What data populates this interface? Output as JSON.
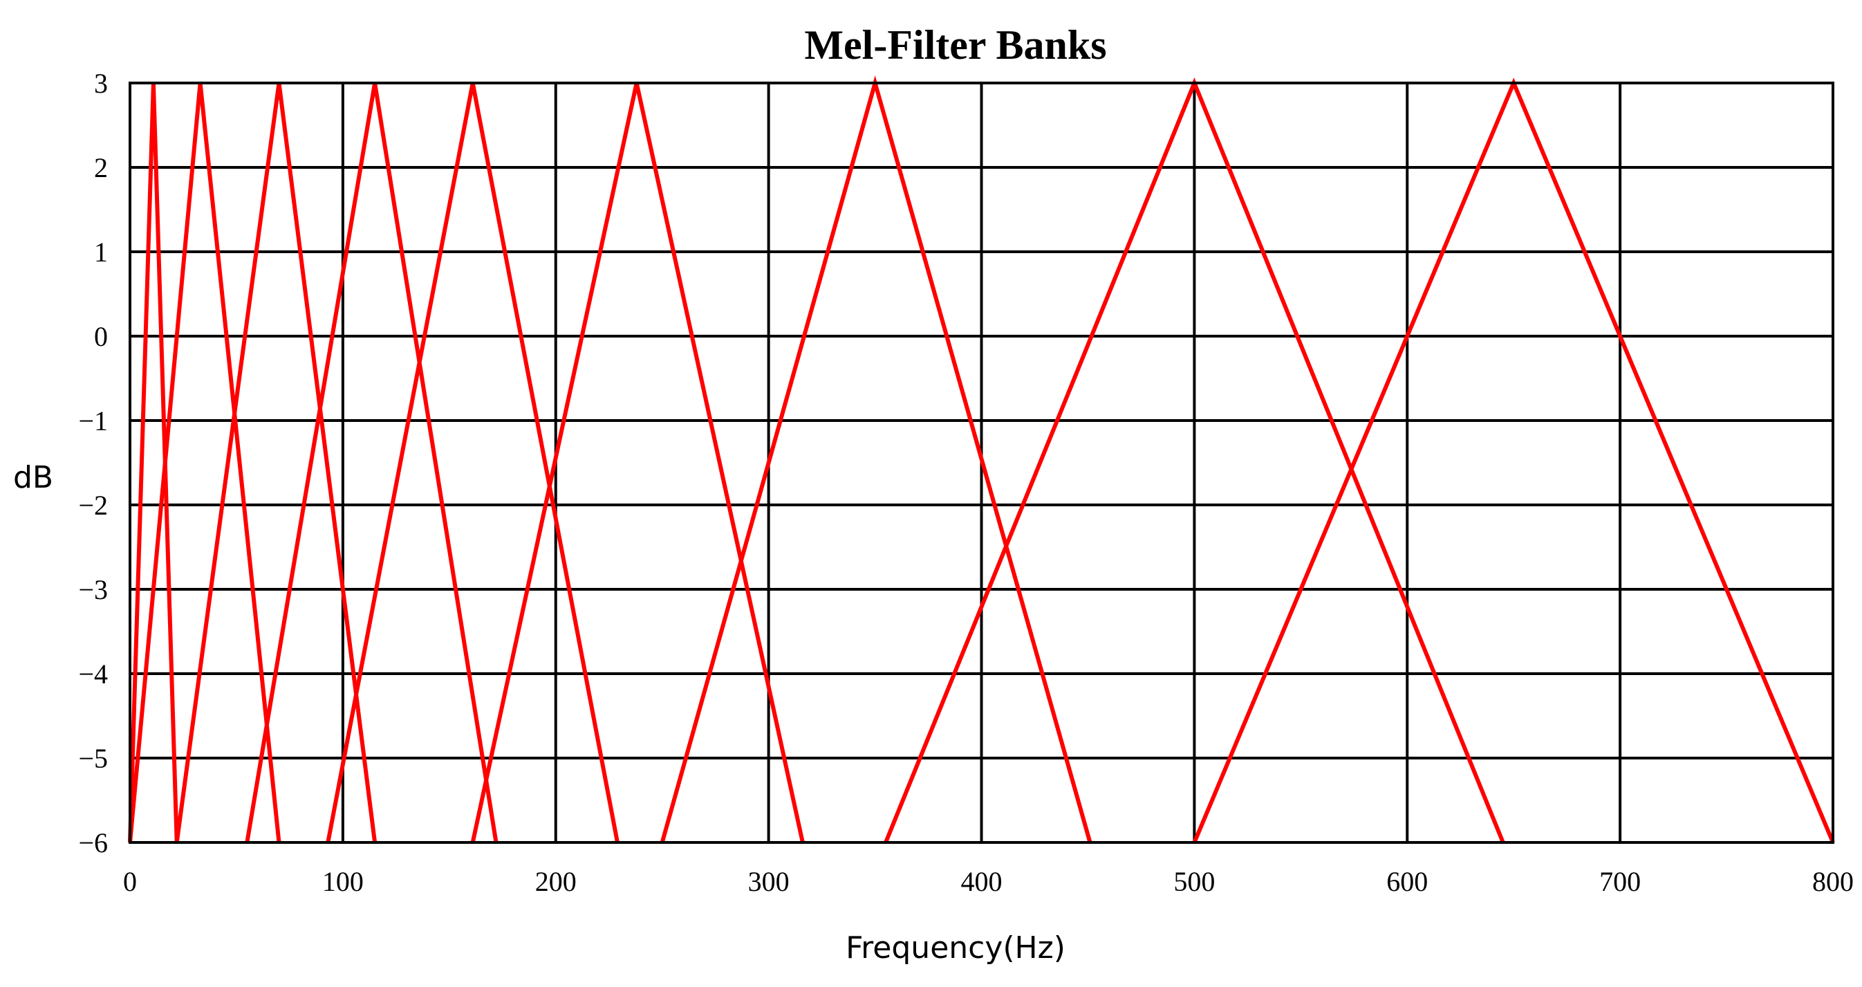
{
  "chart_data": {
    "type": "line",
    "title": "Mel-Filter Banks",
    "xlabel": "Frequency(Hz)",
    "ylabel": "dB",
    "xlim": [
      0,
      800
    ],
    "ylim": [
      -6,
      3
    ],
    "x_ticks": [
      0,
      100,
      200,
      300,
      400,
      500,
      600,
      700,
      800
    ],
    "y_ticks": [
      3,
      2,
      1,
      0,
      -1,
      -2,
      -3,
      -4,
      -5,
      -6
    ],
    "x_tick_labels": [
      "0",
      "100",
      "200",
      "300",
      "400",
      "500",
      "600",
      "700",
      "800"
    ],
    "y_tick_labels": [
      "3",
      "2",
      "1",
      "0",
      "−1",
      "−2",
      "−3",
      "−4",
      "−5",
      "−6"
    ],
    "grid": true,
    "line_color": "#ff0000",
    "series": [
      {
        "x": [
          0,
          11,
          22
        ],
        "y": [
          -6,
          3,
          -6
        ]
      },
      {
        "x": [
          0,
          33,
          70
        ],
        "y": [
          -6,
          3,
          -6
        ]
      },
      {
        "x": [
          22,
          70,
          115
        ],
        "y": [
          -6,
          3,
          -6
        ]
      },
      {
        "x": [
          55,
          115,
          172
        ],
        "y": [
          -6,
          3,
          -6
        ]
      },
      {
        "x": [
          93,
          161,
          229
        ],
        "y": [
          -6,
          3,
          -6
        ]
      },
      {
        "x": [
          161,
          238,
          316
        ],
        "y": [
          -6,
          3,
          -6
        ]
      },
      {
        "x": [
          250,
          350,
          451
        ],
        "y": [
          -6,
          3,
          -6
        ]
      },
      {
        "x": [
          355,
          500,
          645
        ],
        "y": [
          -6,
          3,
          -6
        ]
      },
      {
        "x": [
          500,
          650,
          800
        ],
        "y": [
          -6,
          3,
          -6
        ]
      }
    ]
  }
}
